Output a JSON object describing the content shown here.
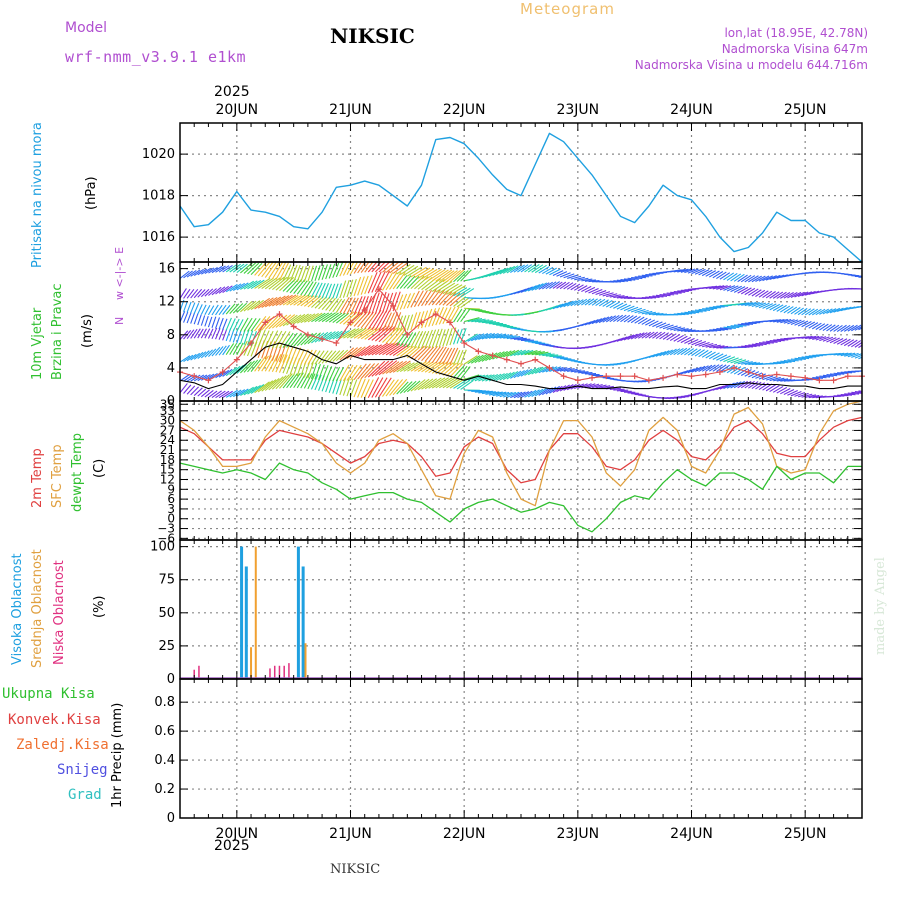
{
  "header": {
    "model_label": "Model",
    "model_name": "wrf-nmm_v3.9.1 e1km",
    "station_title": "NIKSIC",
    "meteogram_label": "Meteogram",
    "lonlat": "lon,lat (18.95E, 42.78N)",
    "altitude": "Nadmorska Visina 647m",
    "model_altitude": "Nadmorska Visina u modelu 644.716m",
    "year": "2025",
    "bottom_title": "NIKSIC",
    "watermark": "made by Angel"
  },
  "colors": {
    "pressure": "#1fa0e0",
    "temp2m": "#e04040",
    "sfc_temp": "#e0a040",
    "dewpt": "#30c030",
    "high_cloud": "#1fa0e0",
    "mid_cloud": "#f0a030",
    "low_cloud": "#e03080",
    "wind_line": "#000000",
    "gust": "#e05050",
    "grid": "#888888"
  },
  "axis_labels": {
    "pressure": [
      "Pritisak na nivou mora",
      "(hPa)"
    ],
    "wind": [
      "10m Vjetar",
      "Brzina i Pravac",
      "(m/s)"
    ],
    "wind_compass": [
      "w <-|-> E",
      "N",
      "S"
    ],
    "temp": [
      "2m Temp",
      "SFC Temp",
      "dewpt Temp",
      "(C)"
    ],
    "cloud": [
      "Visoka Oblacnost",
      "Srednja Oblacnost",
      "Niska Oblacnost",
      "(%)"
    ],
    "precip": [
      "Ukupna Kisa",
      "Konvek.Kisa",
      "Zaledj.Kisa",
      "Snijeg",
      "Grad",
      "1hr Precip (mm)"
    ]
  },
  "days": [
    "20JUN",
    "21JUN",
    "22JUN",
    "23JUN",
    "24JUN",
    "25JUN"
  ],
  "chart_data": [
    {
      "type": "line",
      "name": "pressure",
      "x_start": "2025-06-19 12:00",
      "x_end": "2025-06-25 12:00",
      "x": [
        0,
        3,
        6,
        9,
        12,
        15,
        18,
        21,
        24,
        27,
        30,
        33,
        36,
        39,
        42,
        45,
        48,
        51,
        54,
        57,
        60,
        63,
        66,
        69,
        72,
        75,
        78,
        81,
        84,
        87,
        90,
        93,
        96,
        99,
        102,
        105,
        108,
        111,
        114,
        117,
        120,
        123,
        126,
        129,
        132,
        135,
        138,
        141,
        144
      ],
      "values": [
        1017.5,
        1016.5,
        1016.6,
        1017.2,
        1018.2,
        1017.3,
        1017.2,
        1017.0,
        1016.5,
        1016.4,
        1017.2,
        1018.4,
        1018.5,
        1018.7,
        1018.5,
        1018.0,
        1017.5,
        1018.5,
        1020.7,
        1020.8,
        1020.5,
        1019.8,
        1019.0,
        1018.3,
        1018.0,
        1019.5,
        1021.0,
        1020.6,
        1019.8,
        1019.0,
        1018.0,
        1017.0,
        1016.7,
        1017.5,
        1018.5,
        1018.0,
        1017.8,
        1017.0,
        1016.0,
        1015.3,
        1015.5,
        1016.2,
        1017.2,
        1016.8,
        1016.8,
        1016.2,
        1016.0,
        1015.4,
        1014.8
      ],
      "yticks": [
        1016,
        1018,
        1020
      ],
      "ylim": [
        1014.8,
        1021.5
      ]
    },
    {
      "type": "line",
      "name": "wind",
      "x": [
        0,
        3,
        6,
        9,
        12,
        15,
        18,
        21,
        24,
        27,
        30,
        33,
        36,
        39,
        42,
        45,
        48,
        51,
        54,
        57,
        60,
        63,
        66,
        69,
        72,
        75,
        78,
        81,
        84,
        87,
        90,
        93,
        96,
        99,
        102,
        105,
        108,
        111,
        114,
        117,
        120,
        123,
        126,
        129,
        132,
        135,
        138,
        141,
        144
      ],
      "series": [
        {
          "name": "speed",
          "values": [
            2.5,
            2.2,
            1.5,
            2.0,
            3.5,
            5.0,
            6.5,
            7.0,
            6.5,
            6.0,
            5.0,
            4.5,
            5.5,
            5.0,
            5.0,
            5.0,
            5.5,
            4.5,
            3.5,
            3.0,
            2.5,
            3.0,
            2.5,
            2.0,
            2.0,
            1.8,
            1.5,
            1.5,
            1.8,
            1.5,
            1.5,
            1.7,
            1.5,
            1.5,
            1.7,
            1.8,
            1.5,
            1.5,
            2.0,
            2.0,
            2.2,
            2.0,
            2.0,
            1.8,
            1.8,
            1.5,
            1.5,
            1.8,
            1.8
          ]
        },
        {
          "name": "gust",
          "values": [
            3.5,
            3.0,
            2.5,
            3.5,
            5.0,
            7.0,
            9.5,
            10.5,
            9.0,
            8.0,
            7.5,
            7.0,
            9.5,
            11.0,
            13.5,
            11.5,
            8.0,
            9.5,
            10.5,
            9.5,
            7.0,
            6.0,
            5.5,
            5.0,
            4.5,
            5.0,
            4.0,
            3.0,
            2.5,
            2.8,
            3.0,
            3.0,
            3.0,
            2.5,
            2.8,
            3.2,
            3.0,
            3.2,
            3.5,
            4.0,
            3.5,
            3.0,
            3.2,
            3.0,
            2.8,
            2.5,
            2.5,
            3.0,
            3.0
          ]
        }
      ],
      "yticks": [
        0,
        4,
        8,
        12,
        16
      ],
      "ylim": [
        0,
        16.8
      ]
    },
    {
      "type": "line",
      "name": "temperature",
      "x": [
        0,
        3,
        6,
        9,
        12,
        15,
        18,
        21,
        24,
        27,
        30,
        33,
        36,
        39,
        42,
        45,
        48,
        51,
        54,
        57,
        60,
        63,
        66,
        69,
        72,
        75,
        78,
        81,
        84,
        87,
        90,
        93,
        96,
        99,
        102,
        105,
        108,
        111,
        114,
        117,
        120,
        123,
        126,
        129,
        132,
        135,
        138,
        141,
        144
      ],
      "series": [
        {
          "name": "2m",
          "values": [
            28,
            26,
            22,
            18,
            18,
            18,
            24,
            27,
            26,
            25,
            23,
            20,
            17,
            19,
            23,
            24,
            23,
            19,
            13,
            14,
            22,
            25,
            23,
            15,
            11,
            12,
            21,
            26,
            26,
            22,
            16,
            15,
            18,
            24,
            27,
            24,
            19,
            18,
            22,
            28,
            30,
            26,
            20,
            19,
            19,
            24,
            28,
            30,
            31
          ]
        },
        {
          "name": "sfc",
          "values": [
            30,
            27,
            22,
            16,
            16,
            17,
            25,
            30,
            28,
            26,
            23,
            17,
            14,
            17,
            24,
            26,
            23,
            15,
            7,
            6,
            20,
            27,
            25,
            14,
            6,
            4,
            21,
            30,
            30,
            25,
            14,
            10,
            15,
            27,
            31,
            27,
            16,
            14,
            21,
            32,
            34,
            29,
            16,
            14,
            15,
            26,
            33,
            35,
            36
          ]
        },
        {
          "name": "dewpt",
          "values": [
            17,
            16,
            15,
            14,
            15,
            14,
            12,
            17,
            15,
            14,
            11,
            9,
            6,
            7,
            8,
            8,
            6,
            5,
            2,
            -1,
            3,
            5,
            6,
            4,
            2,
            3,
            5,
            4,
            -2,
            -4,
            0,
            5,
            7,
            6,
            11,
            15,
            12,
            10,
            14,
            14,
            12,
            9,
            16,
            12,
            14,
            14,
            11,
            16,
            16
          ]
        }
      ],
      "yticks": [
        -6,
        -3,
        0,
        3,
        6,
        9,
        12,
        15,
        18,
        21,
        24,
        27,
        30,
        33,
        35
      ],
      "ylim": [
        -6.5,
        36
      ]
    },
    {
      "type": "bar",
      "name": "cloud",
      "series": [
        {
          "name": "high",
          "points": [
            [
              13,
              100
            ],
            [
              14,
              85
            ],
            [
              25,
              100
            ],
            [
              26,
              85
            ]
          ]
        },
        {
          "name": "mid",
          "points": [
            [
              15,
              24
            ],
            [
              16,
              100
            ],
            [
              26.5,
              27
            ]
          ]
        },
        {
          "name": "low",
          "points": [
            [
              3,
              7
            ],
            [
              4,
              10
            ],
            [
              19,
              8
            ],
            [
              20,
              10
            ],
            [
              21,
              10
            ],
            [
              22,
              10
            ],
            [
              23,
              12
            ]
          ]
        }
      ],
      "yticks": [
        0,
        25,
        50,
        75,
        100
      ],
      "ylim": [
        0,
        105
      ]
    },
    {
      "type": "line",
      "name": "precip",
      "values": [],
      "yticks": [
        0,
        0.2,
        0.4,
        0.6,
        0.8
      ],
      "ylim": [
        0,
        0.96
      ]
    }
  ]
}
